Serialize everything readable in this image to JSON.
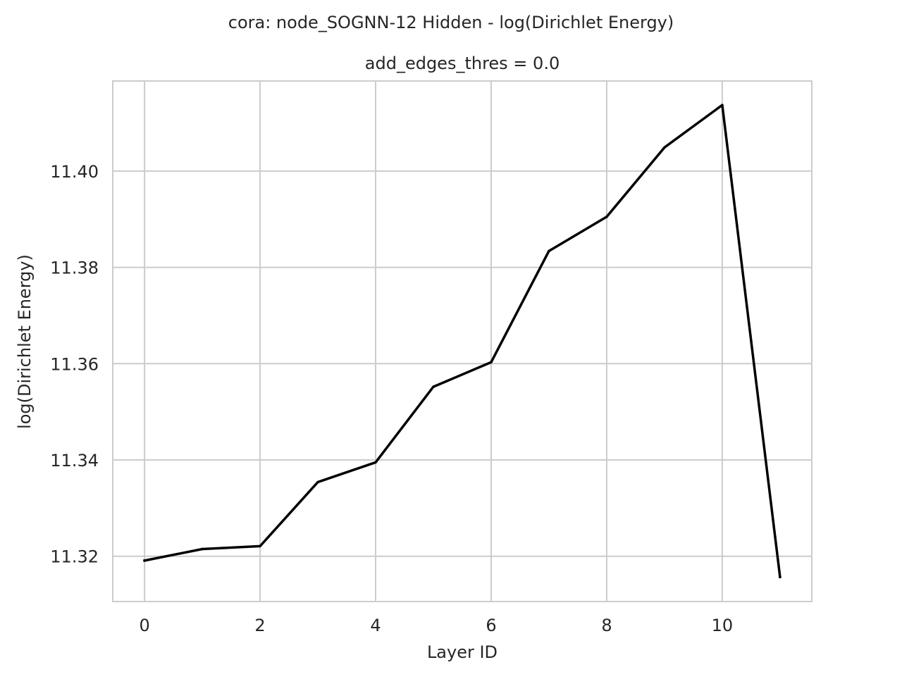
{
  "chart_data": {
    "type": "line",
    "title": "cora: node_SOGNN-12 Hidden - log(Dirichlet Energy)",
    "subtitle": "add_edges_thres = 0.0",
    "xlabel": "Layer ID",
    "ylabel": "log(Dirichlet Energy)",
    "xlim": [
      -0.55,
      11.55
    ],
    "ylim": [
      11.3106,
      11.4187
    ],
    "xticks": [
      0,
      2,
      4,
      6,
      8,
      10
    ],
    "xtick_labels": [
      "0",
      "2",
      "4",
      "6",
      "8",
      "10"
    ],
    "yticks": [
      11.32,
      11.34,
      11.36,
      11.38,
      11.4
    ],
    "ytick_labels": [
      "11.32",
      "11.34",
      "11.36",
      "11.38",
      "11.40"
    ],
    "grid": true,
    "series": [
      {
        "color": "#000000",
        "x": [
          0,
          1,
          2,
          3,
          4,
          5,
          6,
          7,
          8,
          9,
          10,
          11
        ],
        "values": [
          11.3191,
          11.3215,
          11.3221,
          11.3354,
          11.3395,
          11.3552,
          11.3603,
          11.3834,
          11.3905,
          11.4049,
          11.4137,
          11.3157
        ]
      }
    ]
  }
}
